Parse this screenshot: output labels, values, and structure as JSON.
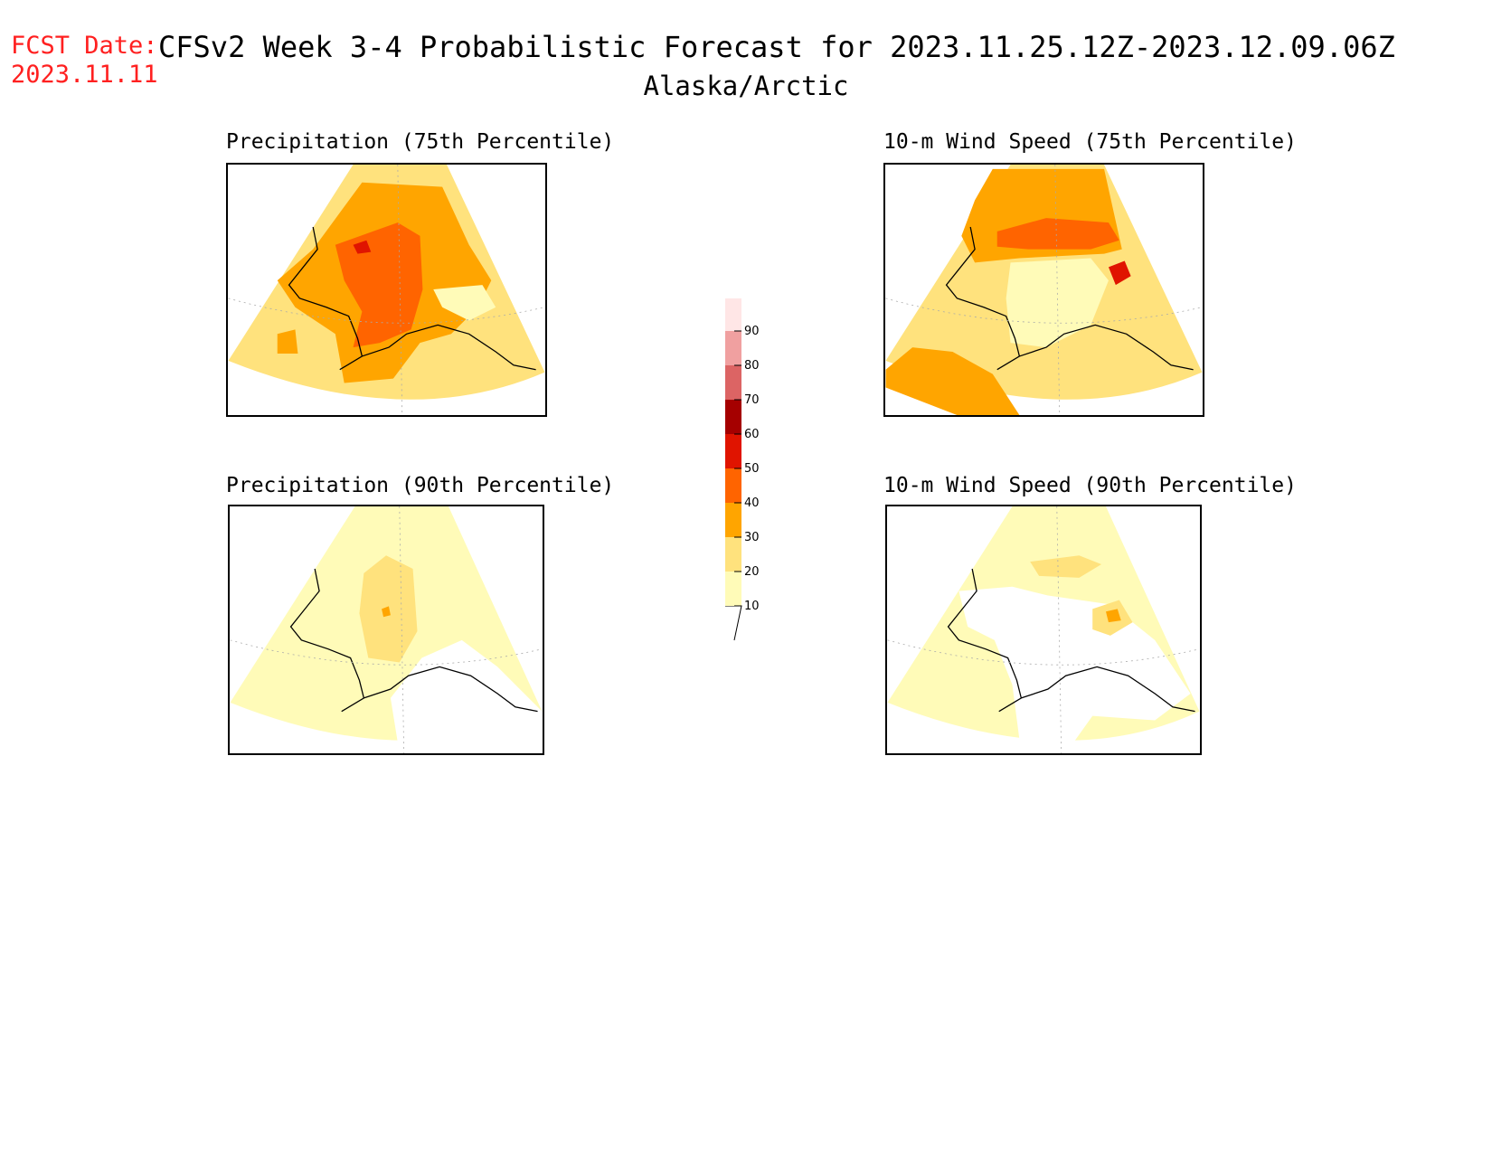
{
  "header": {
    "fcst_label": "FCST Date:",
    "fcst_date": "2023.11.11",
    "title": "CFSv2 Week 3-4 Probabilistic Forecast for 2023.11.25.12Z-2023.12.09.06Z",
    "region": "Alaska/Arctic"
  },
  "panels": [
    {
      "title": "Precipitation (75th Percentile)"
    },
    {
      "title": "10-m Wind Speed (75th Percentile)"
    },
    {
      "title": "Precipitation (90th Percentile)"
    },
    {
      "title": "10-m Wind Speed (90th Percentile)"
    }
  ],
  "colorbar": {
    "levels": [
      10,
      20,
      30,
      40,
      50,
      60,
      70,
      80,
      90
    ],
    "colors": [
      "#fffbb8",
      "#ffe27d",
      "#ffa500",
      "#ff6400",
      "#e01400",
      "#a50000",
      "#dc6464",
      "#f0a0a0",
      "#ffe6e6"
    ]
  },
  "colors": {
    "c10": "#fffbb8",
    "c20": "#ffe27d",
    "c30": "#ffa500",
    "c40": "#ff6400",
    "c50": "#e01400",
    "c60": "#a50000",
    "fcst_red": "#ff2020"
  }
}
